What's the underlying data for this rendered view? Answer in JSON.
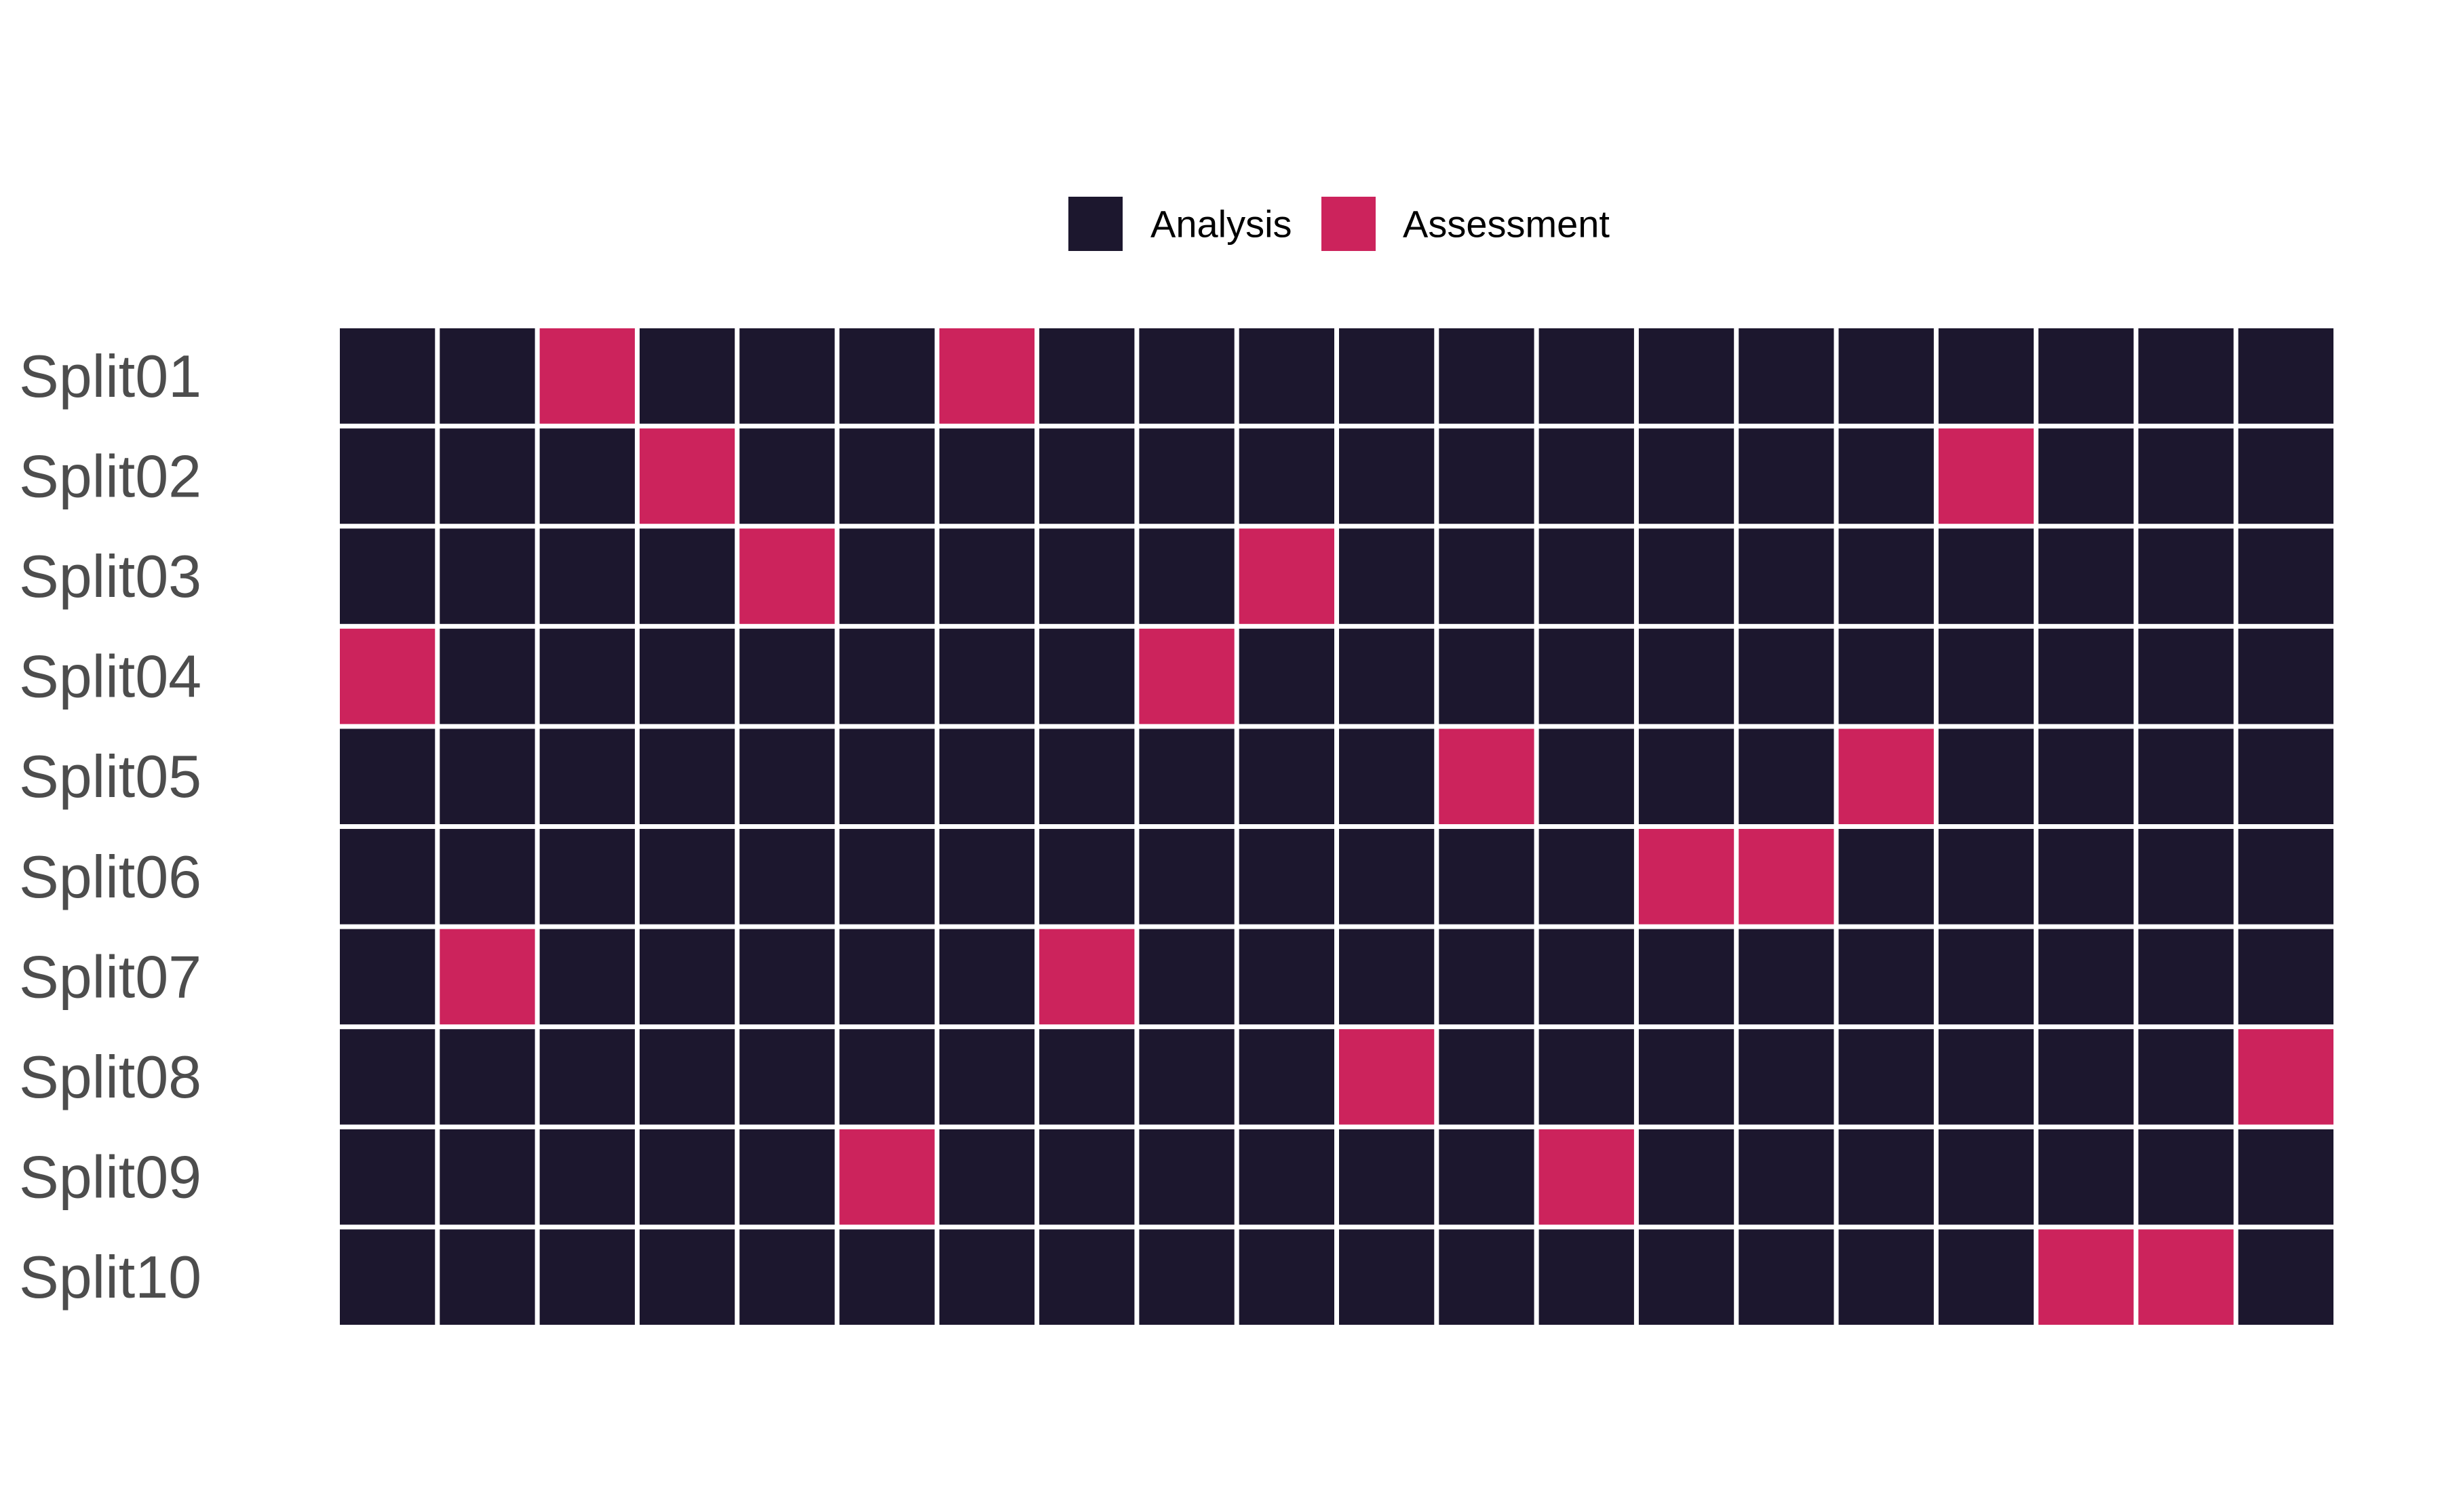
{
  "chart_data": {
    "type": "heatmap",
    "legend": {
      "position": "top-center",
      "entries": [
        {
          "label": "Analysis",
          "color": "#1c172e"
        },
        {
          "label": "Assessment",
          "color": "#cc235c"
        }
      ]
    },
    "rows": [
      "Split01",
      "Split02",
      "Split03",
      "Split04",
      "Split05",
      "Split06",
      "Split07",
      "Split08",
      "Split09",
      "Split10"
    ],
    "columns": 20,
    "grid": false,
    "series": [
      {
        "row": "Split01",
        "values": [
          0,
          0,
          1,
          0,
          0,
          0,
          1,
          0,
          0,
          0,
          0,
          0,
          0,
          0,
          0,
          0,
          0,
          0,
          0,
          0
        ]
      },
      {
        "row": "Split02",
        "values": [
          0,
          0,
          0,
          1,
          0,
          0,
          0,
          0,
          0,
          0,
          0,
          0,
          0,
          0,
          0,
          0,
          1,
          0,
          0,
          0
        ]
      },
      {
        "row": "Split03",
        "values": [
          0,
          0,
          0,
          0,
          1,
          0,
          0,
          0,
          0,
          1,
          0,
          0,
          0,
          0,
          0,
          0,
          0,
          0,
          0,
          0
        ]
      },
      {
        "row": "Split04",
        "values": [
          1,
          0,
          0,
          0,
          0,
          0,
          0,
          0,
          1,
          0,
          0,
          0,
          0,
          0,
          0,
          0,
          0,
          0,
          0,
          0
        ]
      },
      {
        "row": "Split05",
        "values": [
          0,
          0,
          0,
          0,
          0,
          0,
          0,
          0,
          0,
          0,
          0,
          1,
          0,
          0,
          0,
          1,
          0,
          0,
          0,
          0
        ]
      },
      {
        "row": "Split06",
        "values": [
          0,
          0,
          0,
          0,
          0,
          0,
          0,
          0,
          0,
          0,
          0,
          0,
          0,
          1,
          1,
          0,
          0,
          0,
          0,
          0
        ]
      },
      {
        "row": "Split07",
        "values": [
          0,
          1,
          0,
          0,
          0,
          0,
          0,
          1,
          0,
          0,
          0,
          0,
          0,
          0,
          0,
          0,
          0,
          0,
          0,
          0
        ]
      },
      {
        "row": "Split08",
        "values": [
          0,
          0,
          0,
          0,
          0,
          0,
          0,
          0,
          0,
          0,
          1,
          0,
          0,
          0,
          0,
          0,
          0,
          0,
          0,
          1
        ]
      },
      {
        "row": "Split09",
        "values": [
          0,
          0,
          0,
          0,
          0,
          1,
          0,
          0,
          0,
          0,
          0,
          0,
          1,
          0,
          0,
          0,
          0,
          0,
          0,
          0
        ]
      },
      {
        "row": "Split10",
        "values": [
          0,
          0,
          0,
          0,
          0,
          0,
          0,
          0,
          0,
          0,
          0,
          0,
          0,
          0,
          0,
          0,
          0,
          1,
          1,
          0
        ]
      }
    ]
  }
}
